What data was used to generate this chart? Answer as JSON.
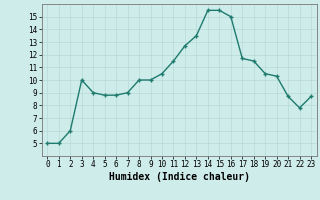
{
  "x": [
    0,
    1,
    2,
    3,
    4,
    5,
    6,
    7,
    8,
    9,
    10,
    11,
    12,
    13,
    14,
    15,
    16,
    17,
    18,
    19,
    20,
    21,
    22,
    23
  ],
  "y": [
    5,
    5,
    6,
    10,
    9,
    8.8,
    8.8,
    9,
    10,
    10,
    10.5,
    11.5,
    12.7,
    13.5,
    15.5,
    15.5,
    15,
    11.7,
    11.5,
    10.5,
    10.3,
    8.7,
    7.8,
    8.7
  ],
  "line_color": "#1e7b6e",
  "bg_color": "#ceecea",
  "grid_color": "#b8dad8",
  "xlabel": "Humidex (Indice chaleur)",
  "ylim": [
    4,
    16
  ],
  "xlim": [
    -0.5,
    23.5
  ],
  "yticks": [
    5,
    6,
    7,
    8,
    9,
    10,
    11,
    12,
    13,
    14,
    15
  ],
  "xticks": [
    0,
    1,
    2,
    3,
    4,
    5,
    6,
    7,
    8,
    9,
    10,
    11,
    12,
    13,
    14,
    15,
    16,
    17,
    18,
    19,
    20,
    21,
    22,
    23
  ],
  "marker_size": 3.5,
  "line_width": 1.0,
  "tick_fontsize": 5.5,
  "xlabel_fontsize": 7.0
}
